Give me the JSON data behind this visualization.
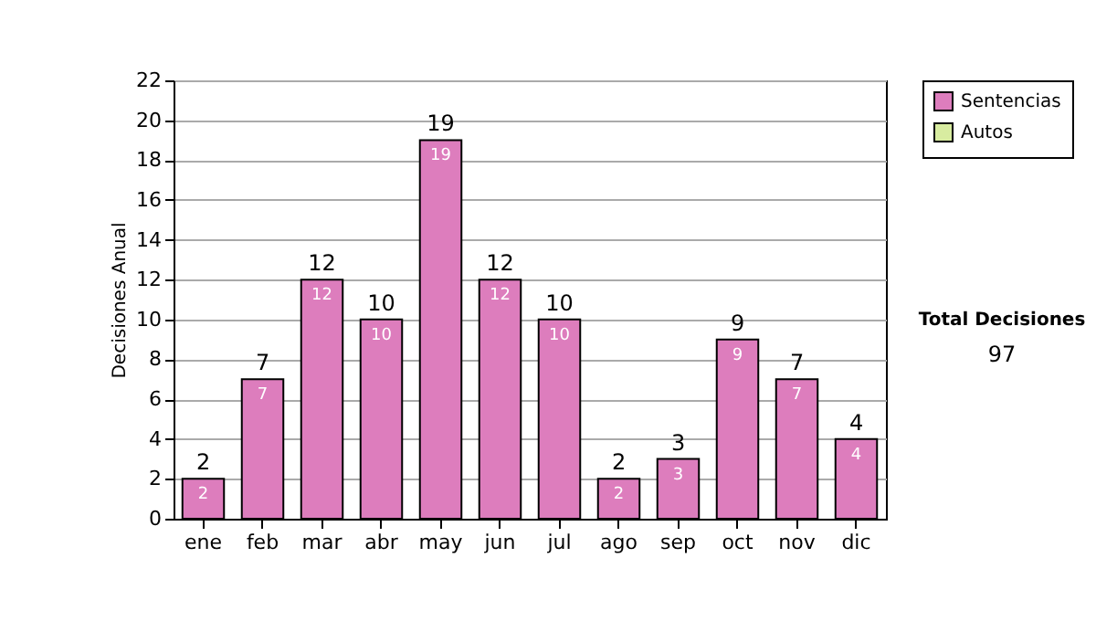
{
  "chart_data": {
    "type": "bar",
    "ylabel": "Decisiones Anual",
    "categories": [
      "ene",
      "feb",
      "mar",
      "abr",
      "may",
      "jun",
      "jul",
      "ago",
      "sep",
      "oct",
      "nov",
      "dic"
    ],
    "series": [
      {
        "name": "Sentencias",
        "color": "#dd7dbd",
        "values": [
          2,
          7,
          12,
          10,
          19,
          12,
          10,
          2,
          3,
          9,
          7,
          4
        ]
      },
      {
        "name": "Autos",
        "color": "#d8ecA0",
        "values": [
          null,
          null,
          null,
          null,
          null,
          null,
          null,
          null,
          null,
          null,
          null,
          null
        ]
      }
    ],
    "data_labels": true,
    "totals": [
      "2",
      "7",
      "12",
      "10",
      "19",
      "12",
      "10",
      "2",
      "3",
      "9",
      "7",
      "4"
    ],
    "ylim": [
      0,
      22
    ],
    "yticks": [
      0,
      2,
      4,
      6,
      8,
      10,
      12,
      14,
      16,
      18,
      20,
      22
    ],
    "grid": "y",
    "legend": "right",
    "annotations": [
      "Total Decisiones",
      "97"
    ]
  }
}
